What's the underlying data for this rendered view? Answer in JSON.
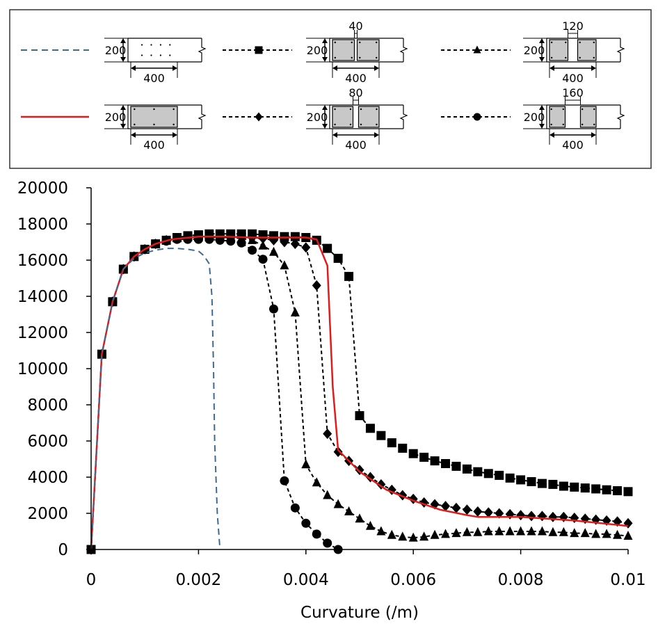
{
  "chart_data": {
    "type": "line",
    "title": "",
    "xlabel": "Curvature (/m)",
    "ylabel": "",
    "xlim": [
      0,
      0.01
    ],
    "ylim": [
      0,
      20000
    ],
    "xticks": [
      0,
      0.002,
      0.004,
      0.006,
      0.008,
      0.01
    ],
    "xtick_labels": [
      "0",
      "0.002",
      "0.004",
      "0.006",
      "0.008",
      "0.01"
    ],
    "yticks": [
      0,
      2000,
      4000,
      6000,
      8000,
      10000,
      12000,
      14000,
      16000,
      18000,
      20000
    ],
    "ytick_labels": [
      "0",
      "2000",
      "4000",
      "6000",
      "8000",
      "10000",
      "12000",
      "14000",
      "16000",
      "18000",
      "20000"
    ],
    "grid": false,
    "legend_placement": "top",
    "series": [
      {
        "name": "plain section 400x200 (no core)",
        "line": "dashed",
        "color": "#3d6b94",
        "marker": "none",
        "x": [
          0,
          0.0002,
          0.0004,
          0.0006,
          0.0008,
          0.001,
          0.0012,
          0.0014,
          0.0016,
          0.0018,
          0.002,
          0.0021,
          0.0022,
          0.00225,
          0.00228,
          0.0023,
          0.00235,
          0.0024
        ],
        "y": [
          0,
          10800,
          13700,
          15500,
          16100,
          16400,
          16550,
          16650,
          16650,
          16600,
          16500,
          16250,
          15800,
          14000,
          10000,
          6000,
          2000,
          0
        ]
      },
      {
        "name": "confined full core 400x200",
        "line": "solid",
        "color": "#e01b1b",
        "marker": "none",
        "x": [
          0,
          0.0002,
          0.0004,
          0.0006,
          0.0008,
          0.001,
          0.0012,
          0.0015,
          0.002,
          0.0025,
          0.003,
          0.0035,
          0.004,
          0.0042,
          0.0044,
          0.0045,
          0.0046,
          0.0048,
          0.005,
          0.0055,
          0.006,
          0.0065,
          0.007,
          0.0072,
          0.0075,
          0.008,
          0.0085,
          0.009,
          0.0095,
          0.01
        ],
        "y": [
          0,
          10800,
          13700,
          15500,
          16200,
          16600,
          16900,
          17150,
          17300,
          17300,
          17250,
          17250,
          17250,
          17150,
          15700,
          9000,
          5500,
          4900,
          4300,
          3300,
          2700,
          2200,
          1900,
          1800,
          1800,
          1800,
          1700,
          1600,
          1450,
          1300
        ]
      },
      {
        "name": "two cores, gap 40",
        "line": "dashed",
        "color": "#000000",
        "marker": "square",
        "x": [
          0,
          0.0002,
          0.0004,
          0.0006,
          0.0008,
          0.001,
          0.0012,
          0.0014,
          0.0016,
          0.0018,
          0.002,
          0.0022,
          0.0024,
          0.0026,
          0.0028,
          0.003,
          0.0032,
          0.0034,
          0.0036,
          0.0038,
          0.004,
          0.0042,
          0.0044,
          0.0046,
          0.0048,
          0.005,
          0.0052,
          0.0054,
          0.0056,
          0.0058,
          0.006,
          0.0062,
          0.0064,
          0.0066,
          0.0068,
          0.007,
          0.0072,
          0.0074,
          0.0076,
          0.0078,
          0.008,
          0.0082,
          0.0084,
          0.0086,
          0.0088,
          0.009,
          0.0092,
          0.0094,
          0.0096,
          0.0098,
          0.01
        ],
        "y": [
          0,
          10800,
          13700,
          15500,
          16200,
          16600,
          16900,
          17100,
          17250,
          17350,
          17400,
          17450,
          17450,
          17450,
          17450,
          17450,
          17400,
          17350,
          17300,
          17300,
          17250,
          17100,
          16650,
          16100,
          15100,
          7400,
          6700,
          6300,
          5900,
          5600,
          5300,
          5100,
          4900,
          4750,
          4600,
          4450,
          4300,
          4200,
          4100,
          3950,
          3850,
          3750,
          3650,
          3600,
          3500,
          3450,
          3400,
          3350,
          3300,
          3250,
          3200
        ]
      },
      {
        "name": "two cores, gap 80",
        "line": "dashed",
        "color": "#000000",
        "marker": "diamond",
        "x": [
          0,
          0.0002,
          0.0004,
          0.0006,
          0.0008,
          0.001,
          0.0012,
          0.0014,
          0.0016,
          0.0018,
          0.002,
          0.0022,
          0.0024,
          0.0026,
          0.0028,
          0.003,
          0.0032,
          0.0034,
          0.0036,
          0.0038,
          0.004,
          0.0042,
          0.0044,
          0.0046,
          0.0048,
          0.005,
          0.0052,
          0.0054,
          0.0056,
          0.0058,
          0.006,
          0.0062,
          0.0064,
          0.0066,
          0.0068,
          0.007,
          0.0072,
          0.0074,
          0.0076,
          0.0078,
          0.008,
          0.0082,
          0.0084,
          0.0086,
          0.0088,
          0.009,
          0.0092,
          0.0094,
          0.0096,
          0.0098,
          0.01
        ],
        "y": [
          0,
          10800,
          13700,
          15500,
          16200,
          16600,
          16900,
          17100,
          17200,
          17250,
          17300,
          17300,
          17300,
          17300,
          17300,
          17250,
          17200,
          17100,
          17000,
          16900,
          16700,
          14600,
          6400,
          5400,
          4900,
          4400,
          4000,
          3600,
          3300,
          3000,
          2800,
          2600,
          2500,
          2400,
          2300,
          2200,
          2100,
          2050,
          2000,
          1950,
          1900,
          1850,
          1850,
          1800,
          1800,
          1750,
          1700,
          1650,
          1600,
          1550,
          1450
        ]
      },
      {
        "name": "two cores, gap 120",
        "line": "dashed",
        "color": "#000000",
        "marker": "triangle",
        "x": [
          0,
          0.0002,
          0.0004,
          0.0006,
          0.0008,
          0.001,
          0.0012,
          0.0014,
          0.0016,
          0.0018,
          0.002,
          0.0022,
          0.0024,
          0.0026,
          0.0028,
          0.003,
          0.0032,
          0.0034,
          0.0036,
          0.0038,
          0.004,
          0.0042,
          0.0044,
          0.0046,
          0.0048,
          0.005,
          0.0052,
          0.0054,
          0.0056,
          0.0058,
          0.006,
          0.0062,
          0.0064,
          0.0066,
          0.0068,
          0.007,
          0.0072,
          0.0074,
          0.0076,
          0.0078,
          0.008,
          0.0082,
          0.0084,
          0.0086,
          0.0088,
          0.009,
          0.0092,
          0.0094,
          0.0096,
          0.0098,
          0.01
        ],
        "y": [
          0,
          10800,
          13700,
          15500,
          16200,
          16600,
          16900,
          17100,
          17200,
          17250,
          17250,
          17250,
          17250,
          17250,
          17200,
          17100,
          16800,
          16450,
          15700,
          13100,
          4700,
          3700,
          3000,
          2500,
          2100,
          1700,
          1300,
          1000,
          800,
          700,
          650,
          700,
          800,
          850,
          900,
          950,
          950,
          1000,
          1000,
          1000,
          1000,
          1000,
          1000,
          950,
          950,
          900,
          900,
          850,
          850,
          800,
          750
        ]
      },
      {
        "name": "two cores, gap 160",
        "line": "dashed",
        "color": "#000000",
        "marker": "circle",
        "x": [
          0,
          0.0002,
          0.0004,
          0.0006,
          0.0008,
          0.001,
          0.0012,
          0.0014,
          0.0016,
          0.0018,
          0.002,
          0.0022,
          0.0024,
          0.0026,
          0.0028,
          0.003,
          0.0032,
          0.0034,
          0.0036,
          0.0038,
          0.004,
          0.0042,
          0.0044,
          0.0046
        ],
        "y": [
          0,
          10800,
          13700,
          15500,
          16200,
          16600,
          16900,
          17050,
          17150,
          17150,
          17150,
          17150,
          17100,
          17050,
          16950,
          16550,
          16050,
          13300,
          3800,
          2300,
          1450,
          850,
          350,
          0
        ]
      }
    ],
    "legend": [
      {
        "series": "plain section 400x200 (no core)",
        "width": "400",
        "height": "200",
        "gap": ""
      },
      {
        "series": "two cores, gap 40",
        "width": "400",
        "height": "200",
        "gap": "40"
      },
      {
        "series": "two cores, gap 120",
        "width": "400",
        "height": "200",
        "gap": "120"
      },
      {
        "series": "confined full core 400x200",
        "width": "400",
        "height": "200",
        "gap": ""
      },
      {
        "series": "two cores, gap 80",
        "width": "400",
        "height": "200",
        "gap": "80"
      },
      {
        "series": "two cores, gap 160",
        "width": "400",
        "height": "200",
        "gap": "160"
      }
    ]
  }
}
